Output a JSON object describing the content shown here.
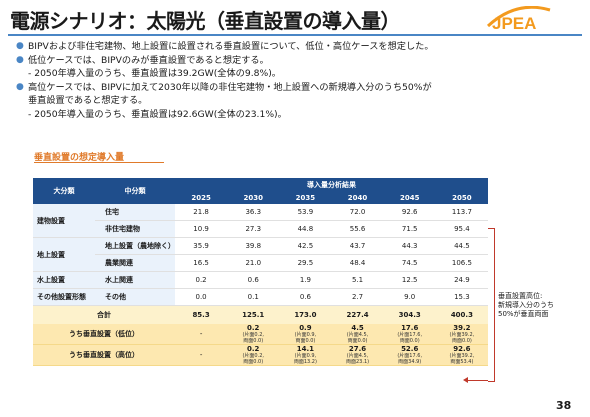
{
  "title": "電源シナリオ：太陽光（垂直設置の導入量）",
  "logo_text": "JPEA",
  "bullets": [
    {
      "text": "BIPVおよび非住宅建物、地上設置に設置される垂直設置について、低位・高位ケースを想定した。",
      "subs": []
    },
    {
      "text": "低位ケースでは、BIPVのみが垂直設置であると想定する。",
      "subs": [
        "- 2050年導入量のうち、垂直設置は39.2GW(全体の9.8%)。"
      ]
    },
    {
      "text": "高位ケースでは、BIPVに加えて2030年以降の非住宅建物・地上設置への新規導入分のうち50%が",
      "text2": "垂直設置であると想定する。",
      "subs": [
        "- 2050年導入量のうち、垂直設置は92.6GW(全体の23.1%)。"
      ]
    }
  ],
  "section_label": "垂直設置の想定導入量",
  "table": {
    "header_main": "大分類",
    "header_sub": "中分類",
    "header_group": "導入量分析結果",
    "years": [
      "2025",
      "2030",
      "2035",
      "2040",
      "2045",
      "2050"
    ],
    "rows": [
      {
        "cat": "建物設置",
        "sub": "住宅",
        "values": [
          "21.8",
          "36.3",
          "53.9",
          "72.0",
          "92.6",
          "113.7"
        ]
      },
      {
        "cat": "",
        "sub": "非住宅建物",
        "values": [
          "10.9",
          "27.3",
          "44.8",
          "55.6",
          "71.5",
          "95.4"
        ]
      },
      {
        "cat": "地上設置",
        "sub": "地上設置（農地除く）",
        "values": [
          "35.9",
          "39.8",
          "42.5",
          "43.7",
          "44.3",
          "44.5"
        ]
      },
      {
        "cat": "",
        "sub": "農業関連",
        "values": [
          "16.5",
          "21.0",
          "29.5",
          "48.4",
          "74.5",
          "106.5"
        ]
      },
      {
        "cat": "水上設置",
        "sub": "水上関連",
        "values": [
          "0.2",
          "0.6",
          "1.9",
          "5.1",
          "12.5",
          "24.9"
        ]
      },
      {
        "cat": "その他設置形態",
        "sub": "その他",
        "values": [
          "0.0",
          "0.1",
          "0.6",
          "2.7",
          "9.0",
          "15.3"
        ]
      }
    ],
    "total": {
      "label": "合計",
      "values": [
        "85.3",
        "125.1",
        "173.0",
        "227.4",
        "304.3",
        "400.3"
      ]
    },
    "vertical_low": {
      "label": "うち垂直設置（低位）",
      "first": "-",
      "values": [
        {
          "main": "0.2",
          "n1": "(片面0.2,",
          "n2": "両面0.0)"
        },
        {
          "main": "0.9",
          "n1": "(片面0.9,",
          "n2": "両面0.0)"
        },
        {
          "main": "4.5",
          "n1": "(片面4.5,",
          "n2": "両面0.0)"
        },
        {
          "main": "17.6",
          "n1": "(片面17.6,",
          "n2": "両面0.0)"
        },
        {
          "main": "39.2",
          "n1": "(片面39.2,",
          "n2": "両面0.0)"
        }
      ]
    },
    "vertical_high": {
      "label": "うち垂直設置（高位）",
      "first": "-",
      "values": [
        {
          "main": "0.2",
          "n1": "(片面0.2,",
          "n2": "両面0.0)"
        },
        {
          "main": "14.1",
          "n1": "(片面0.9,",
          "n2": "両面13.2)"
        },
        {
          "main": "27.6",
          "n1": "(片面4.5,",
          "n2": "両面23.1)"
        },
        {
          "main": "52.6",
          "n1": "(片面17.6,",
          "n2": "両面34.9)"
        },
        {
          "main": "92.6",
          "n1": "(片面39.2,",
          "n2": "両面53.4)"
        }
      ]
    }
  },
  "callout": [
    "垂直設置高位:",
    "新規導入分のうち",
    "50%が垂直両面"
  ],
  "page_number": "38",
  "colors": {
    "accent_blue": "#4a86c5",
    "header_navy": "#1f4e8c",
    "orange": "#e07a2a",
    "highlight": "#fde8b0"
  }
}
